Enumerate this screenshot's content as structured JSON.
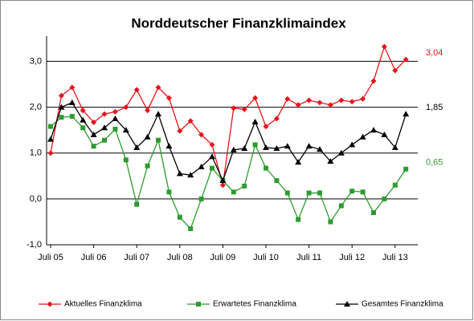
{
  "chart_data": {
    "type": "line",
    "title": "Norddeutscher Finanzklimaindex",
    "categories": [
      "Juli 05",
      null,
      null,
      null,
      "Juli 06",
      null,
      null,
      null,
      "Juli 07",
      null,
      null,
      null,
      "Juli 08",
      null,
      null,
      null,
      "Juli 09",
      null,
      null,
      null,
      "Juli 10",
      null,
      null,
      null,
      "Juli 11",
      null,
      null,
      null,
      "Juli 12",
      null,
      null,
      null,
      "Juli 13",
      null
    ],
    "series": [
      {
        "name": "Aktuelles Finanzklima",
        "color": "#e8141c",
        "marker": "diamond",
        "values": [
          1.0,
          2.25,
          2.43,
          1.93,
          1.67,
          1.85,
          1.9,
          2.0,
          2.38,
          1.93,
          2.43,
          2.2,
          1.48,
          1.7,
          1.4,
          1.18,
          0.3,
          1.98,
          1.95,
          2.2,
          1.58,
          1.75,
          2.18,
          2.05,
          2.15,
          2.1,
          2.05,
          2.15,
          2.12,
          2.18,
          2.57,
          3.32,
          2.8,
          3.04
        ],
        "value_labels": [
          null,
          null,
          null,
          null,
          null,
          null,
          null,
          null,
          null,
          null,
          null,
          null,
          null,
          null,
          null,
          null,
          null,
          null,
          null,
          null,
          null,
          null,
          null,
          null,
          null,
          null,
          null,
          null,
          null,
          null,
          null,
          null,
          null,
          "3,04"
        ]
      },
      {
        "name": "Erwartetes Finanzklima",
        "color": "#2e9b2e",
        "marker": "square",
        "values": [
          1.58,
          1.78,
          1.8,
          1.55,
          1.15,
          1.28,
          1.52,
          0.85,
          -0.12,
          0.72,
          1.28,
          0.15,
          -0.4,
          -0.65,
          0.0,
          0.67,
          0.4,
          0.15,
          0.28,
          1.18,
          0.67,
          0.4,
          0.13,
          -0.45,
          0.13,
          0.13,
          -0.5,
          -0.15,
          0.17,
          0.15,
          -0.3,
          0.0,
          0.3,
          0.65
        ],
        "value_labels": [
          null,
          null,
          null,
          null,
          null,
          null,
          null,
          null,
          null,
          null,
          null,
          null,
          null,
          null,
          null,
          null,
          null,
          null,
          null,
          null,
          null,
          null,
          null,
          null,
          null,
          null,
          null,
          null,
          null,
          null,
          null,
          null,
          null,
          "0,65"
        ]
      },
      {
        "name": "Gesamtes Finanzklima",
        "color": "#000000",
        "marker": "triangle",
        "values": [
          1.3,
          2.0,
          2.1,
          1.72,
          1.4,
          1.55,
          1.75,
          1.5,
          1.12,
          1.35,
          1.85,
          1.15,
          0.55,
          0.52,
          0.7,
          0.92,
          0.4,
          1.07,
          1.1,
          1.68,
          1.12,
          1.1,
          1.15,
          0.8,
          1.15,
          1.08,
          0.82,
          1.0,
          1.18,
          1.35,
          1.5,
          1.4,
          1.12,
          1.85
        ],
        "value_labels": [
          null,
          null,
          null,
          null,
          null,
          null,
          null,
          null,
          null,
          null,
          null,
          null,
          null,
          null,
          null,
          null,
          null,
          null,
          null,
          null,
          null,
          null,
          null,
          null,
          null,
          null,
          null,
          null,
          null,
          null,
          null,
          null,
          null,
          "1,85"
        ]
      }
    ],
    "ylim": [
      -1,
      3.55
    ],
    "yticks": [
      {
        "value": -1,
        "label": "-1,0"
      },
      {
        "value": 0,
        "label": "0,0"
      },
      {
        "value": 1,
        "label": "1,0"
      },
      {
        "value": 2,
        "label": "2,0"
      },
      {
        "value": 3,
        "label": "3,0"
      }
    ],
    "grid": true,
    "legend": "bottom"
  }
}
